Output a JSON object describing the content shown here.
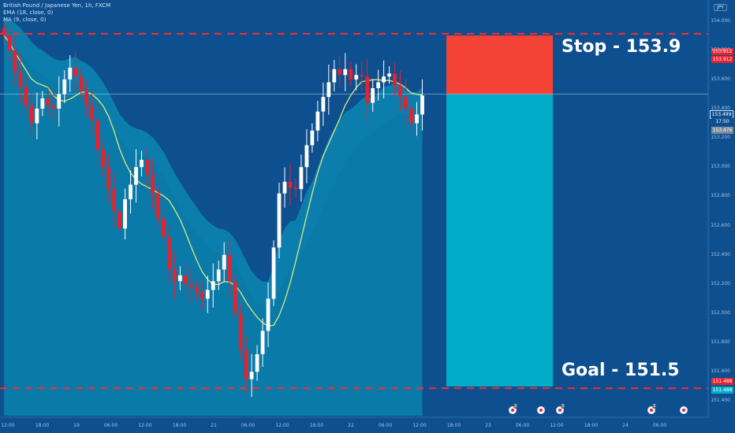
{
  "header": {
    "symbol": "British Pound / Japanese Yen, 1h, FXCM",
    "indicator_1": "EMA (18, close, 0)",
    "indicator_2": "MA (9, close, 0)",
    "currency_badge": "JPY"
  },
  "annotations": {
    "stop_label": "Stop - 153.9",
    "goal_label": "Goal - 151.5"
  },
  "price_tags": {
    "stop_top": "153.912",
    "stop_bottom": "153.912",
    "current_price": "153.499",
    "countdown": "17:50",
    "ma_value": "153.476",
    "goal_top": "151.488",
    "goal_bottom": "151.488"
  },
  "colors": {
    "background": "#0e4f8f",
    "band": "#0a86b4",
    "up_candle": "#ffffff",
    "down_candle": "#e8212e",
    "stop_zone": "#f44336",
    "target_zone": "#00acc9",
    "ma_line": "#d9ec7a",
    "dashed_level": "#ff2a2a"
  },
  "chart_data": {
    "type": "candlestick",
    "title": "British Pound / Japanese Yen, 1h, FXCM",
    "y_axis_ticks": [
      "154.000",
      "153.800",
      "153.600",
      "153.400",
      "153.200",
      "153.000",
      "152.800",
      "152.600",
      "152.400",
      "152.200",
      "152.000",
      "151.800",
      "151.600",
      "151.400"
    ],
    "x_axis_ticks": [
      "12:00",
      "18:00",
      "19",
      "06:00",
      "12:00",
      "18:00",
      "21",
      "06:00",
      "12:00",
      "18:00",
      "22",
      "06:00",
      "12:00",
      "18:00",
      "23",
      "06:00",
      "12:00",
      "18:00",
      "24",
      "06:00"
    ],
    "ylim": [
      151.3,
      154.1
    ],
    "levels": {
      "stop": 153.912,
      "goal": 151.488,
      "current": 153.499,
      "ma": 153.476
    },
    "position": {
      "entry": 153.499,
      "stop": 153.9,
      "target": 151.5,
      "direction": "short"
    },
    "closes": [
      153.9,
      153.8,
      153.65,
      153.55,
      153.42,
      153.3,
      153.4,
      153.47,
      153.42,
      153.4,
      153.5,
      153.6,
      153.68,
      153.62,
      153.52,
      153.42,
      153.32,
      153.12,
      153.0,
      152.85,
      152.7,
      152.58,
      152.78,
      152.88,
      153.0,
      153.05,
      152.95,
      152.82,
      152.65,
      152.52,
      152.3,
      152.22,
      152.26,
      152.2,
      152.18,
      152.14,
      152.1,
      152.16,
      152.22,
      152.3,
      152.4,
      152.22,
      152.0,
      151.75,
      151.55,
      151.6,
      151.72,
      151.88,
      152.1,
      152.45,
      152.82,
      152.9,
      152.86,
      152.85,
      153.0,
      153.15,
      153.25,
      153.38,
      153.48,
      153.58,
      153.67,
      153.63,
      153.67,
      153.6,
      153.63,
      153.62,
      153.44,
      153.54,
      153.58,
      153.62,
      153.64,
      153.56,
      153.48,
      153.4,
      153.3,
      153.36,
      153.49
    ]
  },
  "event_markers": [
    {
      "icon": "calendar-flag-icon",
      "count": "2"
    },
    {
      "icon": "calendar-flag-icon",
      "count": ""
    },
    {
      "icon": "calendar-flag-icon",
      "count": "3"
    },
    {
      "icon": "calendar-flag-icon",
      "count": "2"
    },
    {
      "icon": "calendar-flag-icon",
      "count": ""
    }
  ]
}
